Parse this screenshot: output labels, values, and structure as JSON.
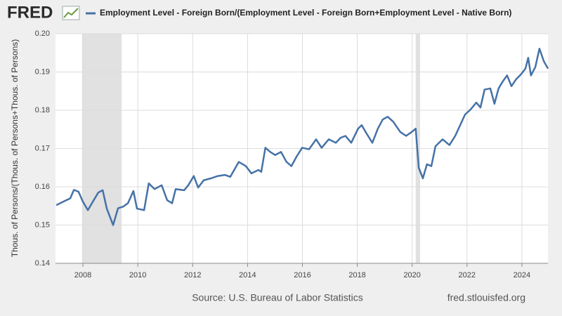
{
  "chart_data": {
    "type": "line",
    "logo": "FRED",
    "y_label": "Thous. of Persons/(Thous. of Persons+Thous. of Persons)",
    "source": "Source: U.S. Bureau of Labor Statistics",
    "site": "fred.stlouisfed.org",
    "x": [
      2007.03,
      2007.28,
      2007.54,
      2007.67,
      2007.84,
      2008.0,
      2008.18,
      2008.36,
      2008.56,
      2008.72,
      2008.87,
      2009.1,
      2009.28,
      2009.46,
      2009.64,
      2009.84,
      2009.97,
      2010.23,
      2010.4,
      2010.61,
      2010.87,
      2011.07,
      2011.25,
      2011.38,
      2011.69,
      2011.84,
      2012.04,
      2012.2,
      2012.4,
      2012.66,
      2012.91,
      2013.17,
      2013.37,
      2013.68,
      2013.94,
      2014.14,
      2014.4,
      2014.5,
      2014.65,
      2014.83,
      2015.01,
      2015.22,
      2015.42,
      2015.6,
      2015.78,
      2015.99,
      2016.24,
      2016.5,
      2016.7,
      2016.96,
      2017.22,
      2017.39,
      2017.57,
      2017.78,
      2018.03,
      2018.16,
      2018.34,
      2018.55,
      2018.75,
      2018.93,
      2019.11,
      2019.31,
      2019.57,
      2019.78,
      2019.98,
      2020.13,
      2020.24,
      2020.39,
      2020.54,
      2020.7,
      2020.85,
      2021.11,
      2021.36,
      2021.57,
      2021.75,
      2021.93,
      2022.13,
      2022.34,
      2022.49,
      2022.64,
      2022.85,
      2023.0,
      2023.15,
      2023.31,
      2023.46,
      2023.62,
      2023.79,
      2023.97,
      2024.13,
      2024.23,
      2024.33,
      2024.49,
      2024.64,
      2024.8,
      2024.95
    ],
    "series": [
      {
        "name": "Employment Level - Foreign Born/(Employment Level - Foreign Born+Employment Level - Native Born)",
        "color": "#4572a7",
        "values": [
          0.1552,
          0.1561,
          0.157,
          0.1592,
          0.1587,
          0.1561,
          0.1539,
          0.1561,
          0.1585,
          0.1591,
          0.1543,
          0.15,
          0.1544,
          0.1548,
          0.1557,
          0.1589,
          0.1543,
          0.1539,
          0.1609,
          0.1594,
          0.1604,
          0.1565,
          0.1557,
          0.1594,
          0.1591,
          0.1604,
          0.1628,
          0.1598,
          0.1617,
          0.1622,
          0.1628,
          0.1631,
          0.1626,
          0.1665,
          0.1654,
          0.1635,
          0.1644,
          0.1639,
          0.1702,
          0.1691,
          0.1683,
          0.1691,
          0.1665,
          0.1654,
          0.1678,
          0.1702,
          0.1698,
          0.1724,
          0.1702,
          0.1724,
          0.1715,
          0.1728,
          0.1733,
          0.1715,
          0.1752,
          0.1761,
          0.1739,
          0.1715,
          0.1752,
          0.1776,
          0.1783,
          0.177,
          0.1743,
          0.1733,
          0.1743,
          0.1752,
          0.165,
          0.1622,
          0.1659,
          0.1654,
          0.1706,
          0.1724,
          0.1709,
          0.1733,
          0.1761,
          0.1789,
          0.1802,
          0.182,
          0.1807,
          0.1854,
          0.1857,
          0.1817,
          0.1857,
          0.1876,
          0.1891,
          0.1863,
          0.1881,
          0.1894,
          0.1909,
          0.1937,
          0.1891,
          0.1913,
          0.1961,
          0.1928,
          0.1909
        ]
      }
    ],
    "recessions": [
      [
        2007.97,
        2009.41
      ],
      [
        2020.13,
        2020.29
      ]
    ],
    "recession_color": "#e1e1e1",
    "xlim": [
      2007,
      2024.95
    ],
    "xticks": [
      2008,
      2010,
      2012,
      2014,
      2016,
      2018,
      2020,
      2022,
      2024
    ],
    "ylim": [
      0.14,
      0.2
    ],
    "yticks": [
      0.14,
      0.15,
      0.16,
      0.17,
      0.18,
      0.19,
      {
        "value": 0.2,
        "label": "0.20"
      }
    ],
    "grid": true
  }
}
